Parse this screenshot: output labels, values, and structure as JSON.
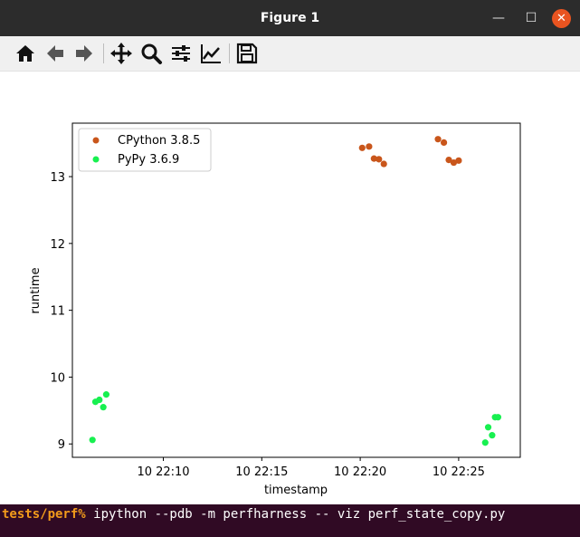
{
  "window": {
    "title": "Figure 1",
    "controls": {
      "minimize": "—",
      "maximize": "☐",
      "close": "✕"
    }
  },
  "toolbar": {
    "buttons": [
      {
        "icon": "home-icon",
        "label": "Home"
      },
      {
        "icon": "back-arrow-icon",
        "label": "Back"
      },
      {
        "icon": "forward-arrow-icon",
        "label": "Forward"
      },
      {
        "icon": "pan-move-icon",
        "label": "Pan"
      },
      {
        "icon": "zoom-magnifier-icon",
        "label": "Zoom"
      },
      {
        "icon": "subplots-sliders-icon",
        "label": "Subplots"
      },
      {
        "icon": "axes-line-chart-icon",
        "label": "Customize"
      },
      {
        "icon": "save-floppy-icon",
        "label": "Save"
      }
    ]
  },
  "chart_data": {
    "type": "scatter",
    "title": "",
    "xlabel": "timestamp",
    "ylabel": "runtime",
    "x_tick_labels": [
      "10 22:10",
      "10 22:15",
      "10 22:20",
      "10 22:25"
    ],
    "x_ticks_minutes": [
      10,
      15,
      20,
      25
    ],
    "y_ticks": [
      9,
      10,
      11,
      12,
      13
    ],
    "xlim_minutes": [
      5.38,
      28.13
    ],
    "ylim": [
      8.8,
      13.8
    ],
    "legend_position": "top-left",
    "series": [
      {
        "name": "CPython 3.8.5",
        "color": "#c9561b",
        "x_minutes": [
          20.1,
          20.45,
          20.7,
          20.95,
          21.2,
          23.95,
          24.25,
          24.5,
          24.75,
          25.0
        ],
        "y": [
          13.43,
          13.45,
          13.27,
          13.26,
          13.19,
          13.56,
          13.51,
          13.25,
          13.21,
          13.24
        ]
      },
      {
        "name": "PyPy 3.6.9",
        "color": "#18f050",
        "x_minutes": [
          6.4,
          6.55,
          6.75,
          6.95,
          7.1,
          26.35,
          26.5,
          26.7,
          26.85,
          27.0
        ],
        "y": [
          9.06,
          9.63,
          9.66,
          9.55,
          9.74,
          9.02,
          9.25,
          9.13,
          9.4,
          9.4
        ]
      }
    ]
  },
  "terminal": {
    "prompt": "tests/perf%",
    "command": " ipython --pdb -m perfharness -- viz perf_state_copy.py"
  }
}
